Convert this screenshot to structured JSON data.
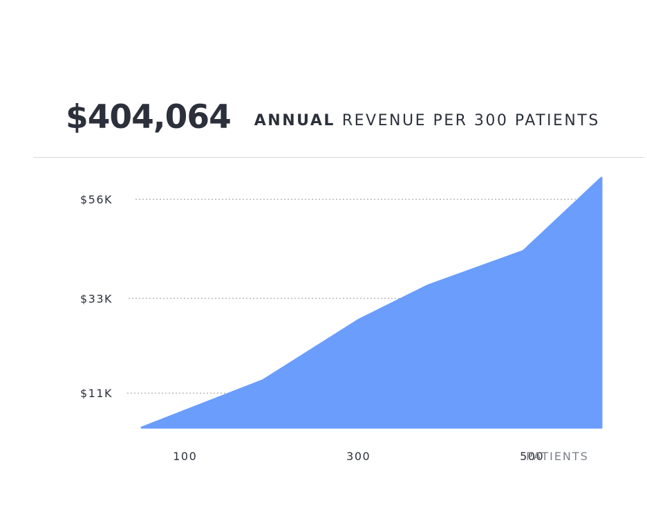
{
  "header": {
    "value": "$404,064",
    "caption_strong": "ANNUAL",
    "caption_rest": "REVENUE PER 300 PATIENTS"
  },
  "colors": {
    "area": "#6a9dfc",
    "text": "#2b303b",
    "muted": "#7a7f88",
    "grid": "#b8b8b8"
  },
  "chart_data": {
    "type": "area",
    "title": "",
    "xlabel": "PATIENTS",
    "ylabel": "",
    "x": [
      50,
      190,
      300,
      380,
      490,
      580
    ],
    "values": [
      3,
      14,
      28,
      36,
      44,
      61
    ],
    "xlim": [
      50,
      580
    ],
    "ylim": [
      3,
      61
    ],
    "x_ticks": [
      {
        "value": 100,
        "label": "100"
      },
      {
        "value": 300,
        "label": "300"
      },
      {
        "value": 500,
        "label": "500"
      }
    ],
    "y_ticks": [
      {
        "value": 11,
        "label": "$11K"
      },
      {
        "value": 33,
        "label": "$33K"
      },
      {
        "value": 56,
        "label": "$56K"
      }
    ],
    "grid": "dotted-horizontal",
    "legend": "none"
  }
}
